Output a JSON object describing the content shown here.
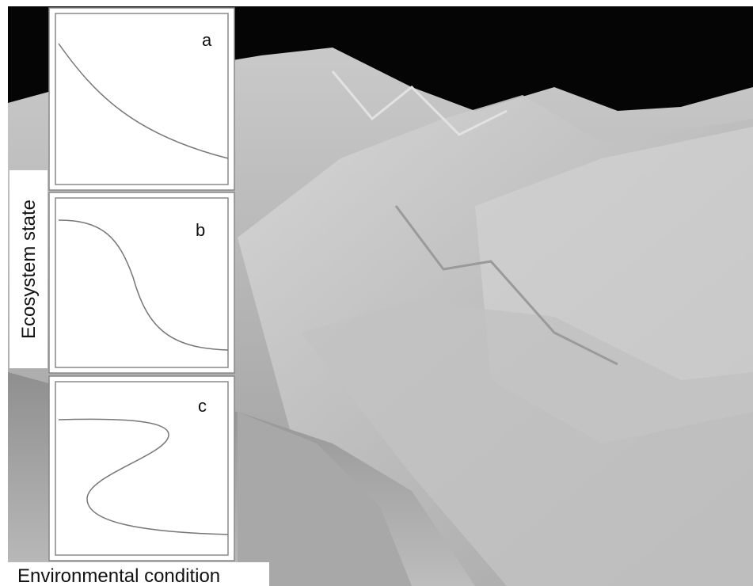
{
  "panels": [
    {
      "label": "a"
    },
    {
      "label": "b"
    },
    {
      "label": "c"
    }
  ],
  "y_axis_label": "Ecosystem state",
  "x_axis_label": "Environmental condition"
}
